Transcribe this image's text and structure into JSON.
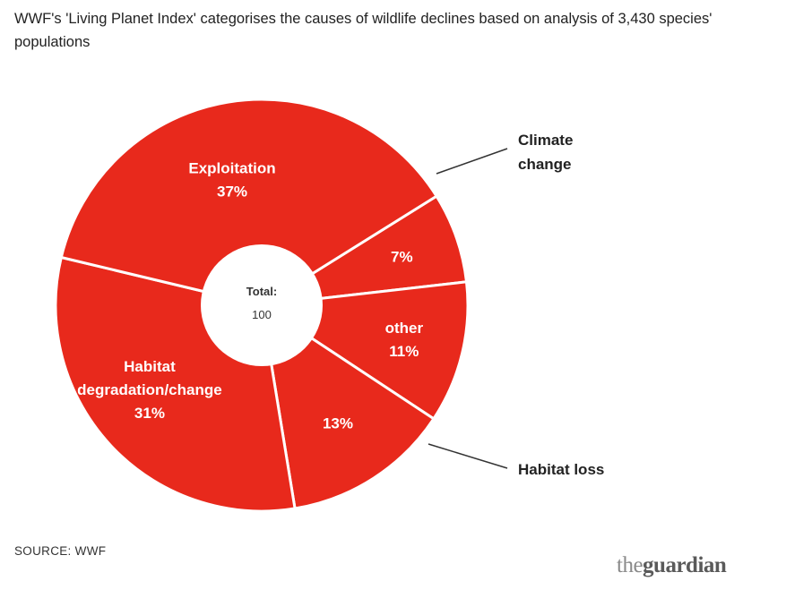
{
  "title": "WWF's 'Living Planet Index' categorises the causes of wildlife declines based on analysis of 3,430 species' populations",
  "source": "SOURCE: WWF",
  "logo": {
    "the": "the",
    "name": "guardian"
  },
  "colors": {
    "slice": "#e8291c",
    "separator": "#ffffff",
    "text": "#222222",
    "logo": "#8a8a8a"
  },
  "chart_data": {
    "type": "pie",
    "variant": "donut",
    "center": {
      "label": "Total:",
      "value": "100"
    },
    "slices": [
      {
        "name": "Exploitation",
        "value": 37,
        "label_lines": [
          "Exploitation",
          "37%"
        ]
      },
      {
        "name": "Climate change",
        "value": 7,
        "label_lines": [
          "7%"
        ],
        "callout_lines": [
          "Climate",
          "change"
        ]
      },
      {
        "name": "other",
        "value": 11,
        "label_lines": [
          "other",
          "11%"
        ]
      },
      {
        "name": "Habitat loss",
        "value": 13,
        "label_lines": [
          "13%"
        ],
        "callout_lines": [
          "Habitat loss"
        ]
      },
      {
        "name": "Habitat degradation/change",
        "value": 31,
        "label_lines": [
          "Habitat",
          "degradation/change",
          "31%"
        ]
      }
    ]
  }
}
